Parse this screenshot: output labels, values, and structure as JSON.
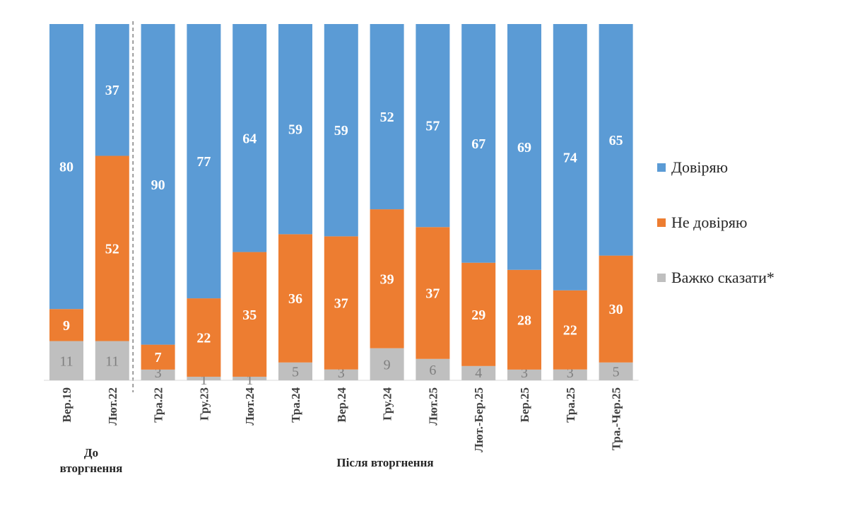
{
  "chart_data": {
    "type": "bar",
    "stacked": true,
    "categories": [
      "Вер.19",
      "Лют.22",
      "Тра.22",
      "Гру.23",
      "Лют.24",
      "Тра.24",
      "Вер.24",
      "Гру.24",
      "Лют.25",
      "Лют.-Бер.25",
      "Бер.25",
      "Тра.25",
      "Тра.-Чер.25"
    ],
    "series": [
      {
        "name": "Важко сказати*",
        "color": "#bfbfbf",
        "values": [
          11,
          11,
          3,
          1,
          1,
          5,
          3,
          9,
          6,
          4,
          3,
          3,
          5
        ]
      },
      {
        "name": "Не довіряю",
        "color": "#ed7d31",
        "values": [
          9,
          52,
          7,
          22,
          35,
          36,
          37,
          39,
          37,
          29,
          28,
          22,
          30
        ]
      },
      {
        "name": "Довіряю",
        "color": "#5b9bd5",
        "values": [
          80,
          37,
          90,
          77,
          64,
          59,
          59,
          52,
          57,
          67,
          69,
          74,
          65
        ]
      }
    ],
    "legend": {
      "position": "right",
      "items": [
        {
          "label": "Довіряю",
          "color": "#5b9bd5"
        },
        {
          "label": "Не довіряю",
          "color": "#ed7d31"
        },
        {
          "label": "Важко сказати*",
          "color": "#bfbfbf"
        }
      ]
    },
    "groups": {
      "before": {
        "label_line1": "До",
        "label_line2": "вторгнення"
      },
      "after": {
        "label": "Після вторгнення"
      }
    },
    "ylim": [
      0,
      100
    ],
    "grid": false
  }
}
